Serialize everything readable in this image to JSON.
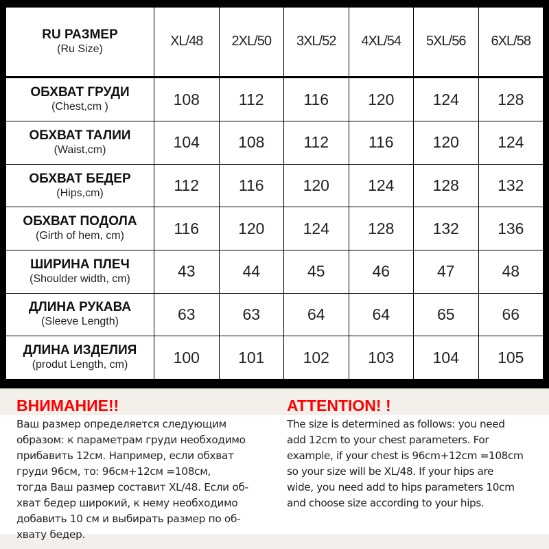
{
  "header": {
    "title": "RU РАЗМЕР",
    "subtitle": "(Ru Size)",
    "sizes": [
      "XL/48",
      "2XL/50",
      "3XL/52",
      "4XL/54",
      "5XL/56",
      "6XL/58"
    ]
  },
  "rows": [
    {
      "title": "ОБХВАТ ГРУДИ",
      "subtitle": "(Chest,cm )",
      "values": [
        "108",
        "112",
        "116",
        "120",
        "124",
        "128"
      ]
    },
    {
      "title": "ОБХВАТ ТАЛИИ",
      "subtitle": "(Waist,cm)",
      "values": [
        "104",
        "108",
        "112",
        "116",
        "120",
        "124"
      ]
    },
    {
      "title": "ОБХВАТ БЕДЕР",
      "subtitle": "(Hips,cm)",
      "values": [
        "112",
        "116",
        "120",
        "124",
        "128",
        "132"
      ]
    },
    {
      "title": "ОБХВАТ ПОДОЛА",
      "subtitle": "(Girth of hem, cm)",
      "values": [
        "116",
        "120",
        "124",
        "128",
        "132",
        "136"
      ]
    },
    {
      "title": "ШИРИНА ПЛЕЧ",
      "subtitle": "(Shoulder width, cm)",
      "values": [
        "43",
        "44",
        "45",
        "46",
        "47",
        "48"
      ]
    },
    {
      "title": "ДЛИНА РУКАВА",
      "subtitle": "(Sleeve Length)",
      "values": [
        "63",
        "63",
        "64",
        "64",
        "65",
        "66"
      ]
    },
    {
      "title": "ДЛИНА ИЗДЕЛИЯ",
      "subtitle": "(produt Length, cm)",
      "values": [
        "100",
        "101",
        "102",
        "103",
        "104",
        "105"
      ]
    }
  ],
  "notes": {
    "ru": {
      "heading": "ВНИМАНИЕ!!",
      "lines": [
        "Ваш размер определяется следующим",
        "образом: к параметрам груди необходимо",
        "прибавить 12см. Например, если обхват",
        "груди  96см, то: 96см+12см =108см,",
        "тогда Ваш размер составит XL/48. Если об-",
        "хват бедер широкий, к нему необходимо",
        "добавить 10 см и выбирать размер по об-",
        "хвату бедер."
      ]
    },
    "en": {
      "heading": "ATTENTION! !",
      "lines": [
        "The size is determined as follows: you need",
        "add 12cm to your chest parameters. For",
        "example, if your chest is 96cm+12cm =108cm",
        "so your size will be XL/48. If your hips are",
        "wide, you need add to hips parameters 10cm",
        "and choose size according to your hips."
      ]
    }
  },
  "colors": {
    "heading": "#ff0000",
    "border": "#000000",
    "background": "#f3f0ec"
  }
}
